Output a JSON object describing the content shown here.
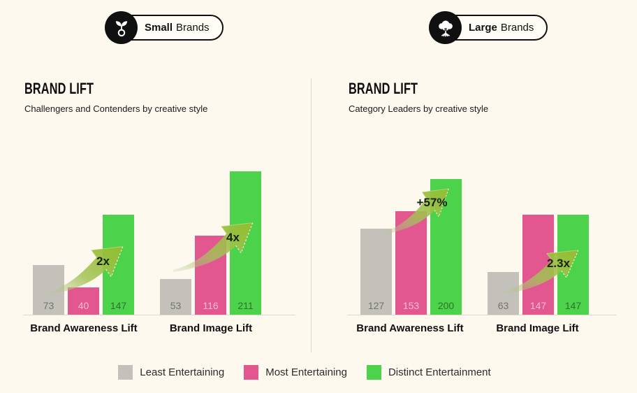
{
  "badges": [
    {
      "bold": "Small",
      "rest": "Brands",
      "icon": "sprout-icon"
    },
    {
      "bold": "Large",
      "rest": "Brands",
      "icon": "tree-icon"
    }
  ],
  "panels": [
    {
      "title": "BRAND LIFT",
      "subtitle": "Challengers and Contenders by creative style",
      "groups": [
        {
          "label": "Brand Awareness Lift",
          "values": [
            73,
            40,
            147
          ],
          "arrow": "2x"
        },
        {
          "label": "Brand Image Lift",
          "values": [
            53,
            116,
            211
          ],
          "arrow": "4x"
        }
      ]
    },
    {
      "title": "BRAND LIFT",
      "subtitle": "Category Leaders by creative style",
      "groups": [
        {
          "label": "Brand Awareness Lift",
          "values": [
            127,
            153,
            200
          ],
          "arrow": "+57%"
        },
        {
          "label": "Brand Image Lift",
          "values": [
            63,
            147,
            147
          ],
          "arrow": "2.3x"
        }
      ]
    }
  ],
  "legend": [
    {
      "label": "Least Entertaining",
      "color": "#c4c1bb"
    },
    {
      "label": "Most Entertaining",
      "color": "#e2578f"
    },
    {
      "label": "Distinct Entertainment",
      "color": "#4dd24b"
    }
  ],
  "colors": {
    "background": "#fdf9ef",
    "bar_gray": "#c4c1bb",
    "bar_pink": "#e2578f",
    "bar_green": "#4dd24b",
    "arrow_green": "#96c139",
    "baseline": "#ddd9ce"
  },
  "chart_data": [
    {
      "type": "bar",
      "title": "BRAND LIFT",
      "subtitle": "Challengers and Contenders by creative style",
      "categories": [
        "Brand Awareness Lift",
        "Brand Image Lift"
      ],
      "series": [
        {
          "name": "Least Entertaining",
          "values": [
            73,
            53
          ]
        },
        {
          "name": "Most Entertaining",
          "values": [
            40,
            116
          ]
        },
        {
          "name": "Distinct Entertainment",
          "values": [
            147,
            211
          ]
        }
      ],
      "annotations": [
        "2x",
        "4x"
      ],
      "legend_position": "bottom",
      "grid": false,
      "data_labels": true
    },
    {
      "type": "bar",
      "title": "BRAND LIFT",
      "subtitle": "Category Leaders by creative style",
      "categories": [
        "Brand Awareness Lift",
        "Brand Image Lift"
      ],
      "series": [
        {
          "name": "Least Entertaining",
          "values": [
            127,
            63
          ]
        },
        {
          "name": "Most Entertaining",
          "values": [
            153,
            147
          ]
        },
        {
          "name": "Distinct Entertainment",
          "values": [
            200,
            147
          ]
        }
      ],
      "annotations": [
        "+57%",
        "2.3x"
      ],
      "legend_position": "bottom",
      "grid": false,
      "data_labels": true
    }
  ]
}
